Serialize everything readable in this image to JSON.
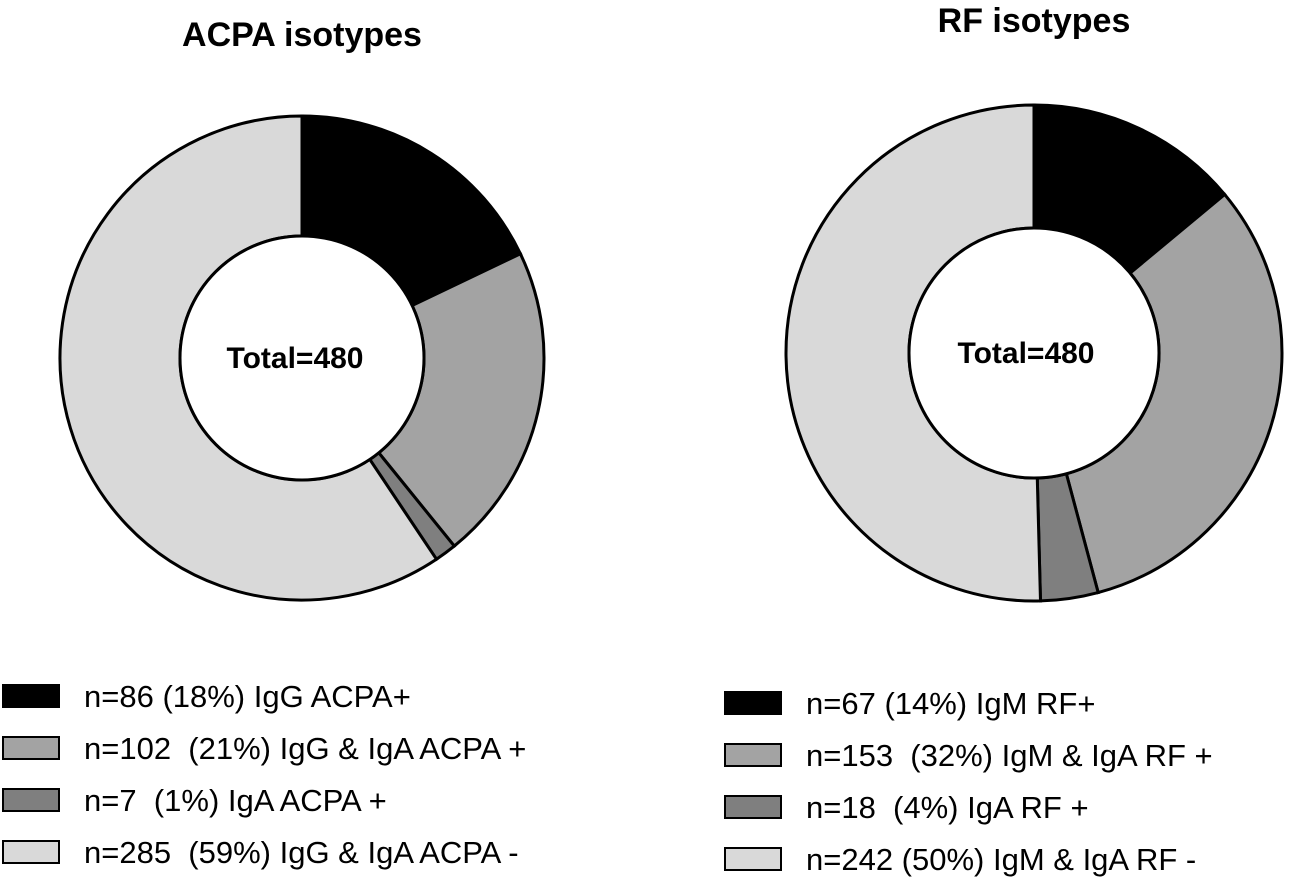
{
  "chart_data": [
    {
      "type": "pie",
      "title": "ACPA isotypes",
      "center_label": "Total=480",
      "categories": [
        "n=86 (18%) IgG ACPA+",
        "n=102  (21%) IgG & IgA ACPA +",
        "n=7  (1%) IgA ACPA +",
        "n=285  (59%) IgG & IgA ACPA -"
      ],
      "values": [
        86,
        102,
        7,
        285
      ],
      "colors": [
        "#000000",
        "#a3a3a3",
        "#7f7f7f",
        "#d9d9d9"
      ],
      "legend_position": "bottom"
    },
    {
      "type": "pie",
      "title": "RF isotypes",
      "center_label": "Total=480",
      "categories": [
        "n=67 (14%) IgM RF+",
        "n=153  (32%) IgM & IgA RF +",
        "n=18  (4%) IgA RF +",
        "n=242 (50%) IgM & IgA RF -"
      ],
      "values": [
        67,
        153,
        18,
        242
      ],
      "colors": [
        "#000000",
        "#a3a3a3",
        "#7f7f7f",
        "#d9d9d9"
      ],
      "legend_position": "bottom"
    }
  ]
}
